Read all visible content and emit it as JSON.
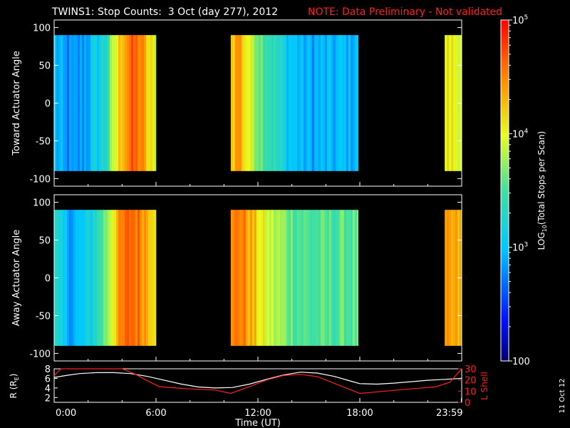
{
  "title": {
    "main": "TWINS1: Stop Counts:  3 Oct (day 277), 2012",
    "note": "NOTE: Data Preliminary - Not validated"
  },
  "footer_date": "11 Oct 12",
  "chart_data": [
    {
      "type": "heatmap",
      "ylabel": "Toward Actuator Angle",
      "ylim": [
        -110,
        110
      ],
      "yticks": [
        "100",
        "50",
        "0",
        "-50",
        "-100"
      ],
      "ytick_values": [
        100,
        50,
        0,
        -50,
        -100
      ],
      "xlim": [
        0,
        24
      ],
      "data_angle_range": [
        -90,
        90
      ],
      "coverage_hours": [
        [
          0,
          6.0
        ],
        [
          10.4,
          17.9
        ],
        [
          23.0,
          24
        ]
      ],
      "profile_log_counts": [
        [
          0.0,
          2.95
        ],
        [
          0.5,
          2.8
        ],
        [
          1.0,
          2.75
        ],
        [
          1.5,
          2.8
        ],
        [
          2.0,
          2.95
        ],
        [
          2.5,
          3.1
        ],
        [
          3.0,
          3.3
        ],
        [
          3.5,
          3.9
        ],
        [
          4.0,
          4.4
        ],
        [
          4.5,
          4.6
        ],
        [
          5.0,
          4.55
        ],
        [
          5.5,
          4.1
        ],
        [
          6.0,
          3.9
        ],
        [
          10.4,
          4.2
        ],
        [
          10.8,
          4.5
        ],
        [
          11.2,
          4.1
        ],
        [
          11.6,
          3.9
        ],
        [
          12.2,
          3.6
        ],
        [
          13.0,
          3.3
        ],
        [
          14.0,
          3.0
        ],
        [
          15.0,
          2.9
        ],
        [
          16.0,
          2.9
        ],
        [
          17.0,
          2.95
        ],
        [
          17.9,
          3.0
        ],
        [
          23.0,
          4.05
        ],
        [
          24.0,
          4.05
        ]
      ]
    },
    {
      "type": "heatmap",
      "ylabel": "Away Actuator Angle",
      "ylim": [
        -110,
        110
      ],
      "yticks": [
        "100",
        "50",
        "0",
        "-50",
        "-100"
      ],
      "ytick_values": [
        100,
        50,
        0,
        -50,
        -100
      ],
      "xlim": [
        0,
        24
      ],
      "data_angle_range": [
        -90,
        90
      ],
      "coverage_hours": [
        [
          0,
          6.0
        ],
        [
          10.4,
          17.9
        ],
        [
          23.0,
          24
        ]
      ],
      "profile_log_counts": [
        [
          0.0,
          3.2
        ],
        [
          0.5,
          3.0
        ],
        [
          1.0,
          2.9
        ],
        [
          1.5,
          2.95
        ],
        [
          2.0,
          3.1
        ],
        [
          2.5,
          3.35
        ],
        [
          3.0,
          3.7
        ],
        [
          3.5,
          4.2
        ],
        [
          4.0,
          4.5
        ],
        [
          4.5,
          4.65
        ],
        [
          5.0,
          4.55
        ],
        [
          5.5,
          4.35
        ],
        [
          6.0,
          4.2
        ],
        [
          10.4,
          4.35
        ],
        [
          10.8,
          4.6
        ],
        [
          11.2,
          4.45
        ],
        [
          11.6,
          4.3
        ],
        [
          12.2,
          4.0
        ],
        [
          13.0,
          3.8
        ],
        [
          14.0,
          3.6
        ],
        [
          15.0,
          3.5
        ],
        [
          16.0,
          3.5
        ],
        [
          17.0,
          3.55
        ],
        [
          17.9,
          3.6
        ],
        [
          23.0,
          4.3
        ],
        [
          24.0,
          4.3
        ]
      ]
    },
    {
      "type": "line",
      "ylabel_left": "R (R",
      "ylabel_left_sub": "E",
      "ylabel_left_close": ")",
      "ylabel_right": "L Shell",
      "ylim_left": [
        1,
        8
      ],
      "ylim_right": [
        0,
        30
      ],
      "yticks_left": [
        "2",
        "4",
        "6",
        "8"
      ],
      "yticks_left_values": [
        2,
        4,
        6,
        8
      ],
      "yticks_right": [
        "0",
        "10",
        "20",
        "30"
      ],
      "yticks_right_values": [
        0,
        10,
        20,
        30
      ],
      "xlim": [
        0,
        24
      ],
      "xlabel": "Time (UT)",
      "xticks": [
        "0:00",
        "6:00",
        "12:00",
        "18:00",
        "23:59"
      ],
      "xtick_values": [
        0,
        6,
        12,
        18,
        23.98
      ],
      "series": [
        {
          "color": "#ffffff",
          "axis": "left",
          "x": [
            0,
            0.7,
            1.5,
            2.5,
            3.5,
            4.5,
            5.5,
            6.5,
            7.5,
            8.5,
            9.5,
            10.5,
            11.5,
            12.5,
            13.5,
            14.5,
            15.5,
            16.5,
            17.5,
            18.0,
            19.0,
            20.0,
            21.0,
            22.0,
            23.0,
            24.0
          ],
          "y": [
            6.2,
            6.6,
            7.0,
            7.2,
            7.2,
            7.0,
            6.4,
            5.6,
            4.8,
            4.2,
            4.0,
            4.1,
            4.8,
            5.8,
            6.7,
            7.3,
            7.1,
            6.4,
            5.4,
            4.9,
            4.8,
            5.0,
            5.3,
            5.6,
            5.8,
            6.0
          ]
        },
        {
          "color": "#ff2020",
          "axis": "right",
          "x": [
            0,
            0.4,
            4.0,
            4.8,
            5.4,
            6.2,
            8.0,
            9.5,
            10.4,
            11.5,
            12.5,
            13.5,
            14.5,
            15.5,
            16.5,
            17.5,
            18.0,
            19.5,
            21.0,
            22.5,
            23.3,
            24.0
          ],
          "y": [
            24,
            30,
            30,
            25,
            20,
            14,
            12,
            11,
            8,
            14,
            20,
            24,
            25,
            23,
            17,
            11,
            8,
            10,
            12,
            14,
            18,
            30
          ]
        }
      ]
    }
  ],
  "colorbar": {
    "label_prefix": "LOG",
    "label_sub": "10",
    "label_suffix": "(Total Stops per Scan)",
    "range": [
      100,
      100000
    ],
    "tick_labels": [
      {
        "base": "10",
        "exp": "5",
        "value": 100000
      },
      {
        "base": "10",
        "exp": "4",
        "value": 10000
      },
      {
        "base": "10",
        "exp": "3",
        "value": 1000
      },
      {
        "base": "100",
        "exp": "",
        "value": 100
      }
    ]
  }
}
